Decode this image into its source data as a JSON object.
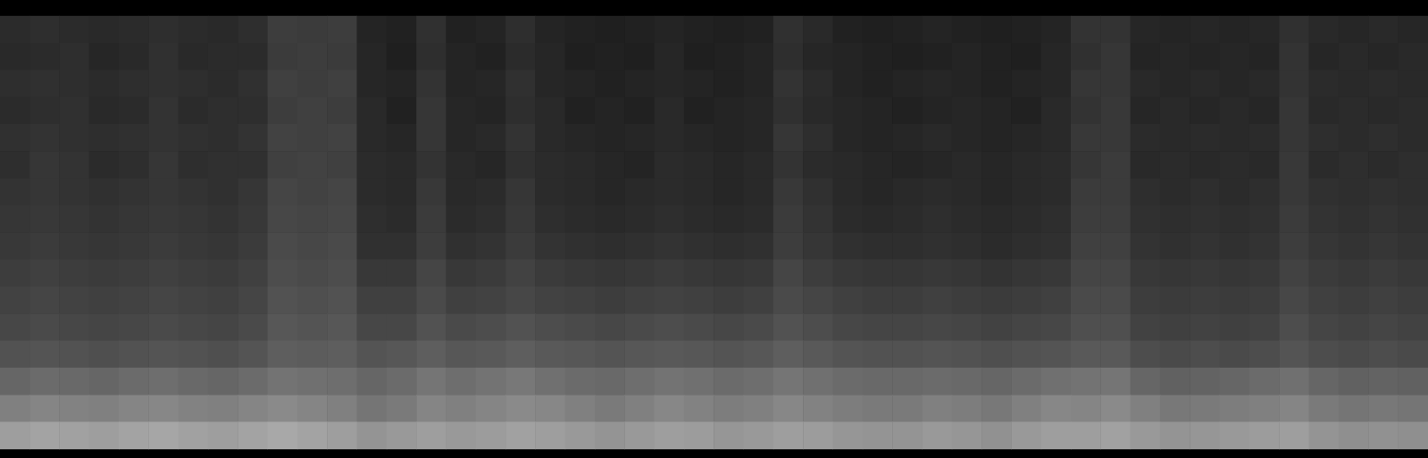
{
  "chart_data": {
    "type": "heatmap",
    "zlim": [
      0,
      100
    ],
    "color": "#ffffff",
    "tick_labels": false,
    "grid": false,
    "cells": [
      [
        17,
        18,
        17,
        16,
        17,
        18,
        17,
        16,
        18,
        24,
        23,
        24,
        14,
        13,
        19,
        13,
        14,
        18,
        14,
        13,
        12,
        13,
        14,
        13,
        12,
        13,
        19,
        16,
        13,
        12,
        13,
        14,
        13,
        12,
        13,
        14,
        20,
        20,
        15,
        14,
        15,
        14,
        15,
        19,
        16,
        15,
        16,
        15
      ],
      [
        16,
        17,
        18,
        15,
        16,
        19,
        16,
        17,
        17,
        23,
        24,
        23,
        15,
        12,
        18,
        14,
        13,
        17,
        15,
        12,
        13,
        12,
        15,
        12,
        13,
        14,
        18,
        15,
        14,
        13,
        12,
        13,
        14,
        13,
        12,
        15,
        19,
        21,
        14,
        15,
        14,
        15,
        14,
        20,
        15,
        16,
        15,
        16
      ],
      [
        18,
        19,
        18,
        17,
        18,
        19,
        18,
        17,
        19,
        25,
        24,
        25,
        15,
        14,
        20,
        14,
        15,
        19,
        15,
        14,
        13,
        14,
        15,
        14,
        13,
        14,
        20,
        17,
        14,
        13,
        14,
        15,
        14,
        13,
        14,
        15,
        21,
        21,
        16,
        15,
        16,
        15,
        16,
        20,
        17,
        16,
        17,
        16
      ],
      [
        17,
        18,
        19,
        16,
        17,
        20,
        17,
        18,
        18,
        24,
        25,
        24,
        16,
        13,
        21,
        15,
        14,
        18,
        16,
        13,
        14,
        13,
        16,
        13,
        14,
        15,
        19,
        16,
        15,
        14,
        13,
        14,
        15,
        14,
        13,
        16,
        20,
        22,
        15,
        16,
        15,
        16,
        15,
        21,
        16,
        17,
        16,
        17
      ],
      [
        19,
        20,
        19,
        18,
        19,
        20,
        19,
        18,
        20,
        26,
        25,
        26,
        16,
        15,
        21,
        15,
        16,
        20,
        16,
        15,
        14,
        15,
        16,
        15,
        14,
        15,
        21,
        18,
        15,
        14,
        15,
        16,
        15,
        14,
        15,
        16,
        22,
        22,
        17,
        16,
        17,
        16,
        17,
        21,
        18,
        17,
        18,
        17
      ],
      [
        18,
        21,
        20,
        17,
        18,
        21,
        18,
        19,
        19,
        25,
        26,
        25,
        17,
        16,
        20,
        16,
        15,
        19,
        17,
        16,
        15,
        14,
        17,
        16,
        15,
        16,
        20,
        17,
        16,
        15,
        14,
        15,
        16,
        15,
        16,
        17,
        21,
        23,
        16,
        17,
        16,
        17,
        16,
        22,
        17,
        18,
        17,
        18
      ],
      [
        20,
        21,
        20,
        19,
        20,
        21,
        20,
        19,
        21,
        27,
        26,
        27,
        17,
        16,
        22,
        16,
        17,
        21,
        17,
        16,
        15,
        16,
        17,
        16,
        15,
        16,
        22,
        19,
        16,
        15,
        16,
        17,
        16,
        15,
        16,
        17,
        23,
        23,
        18,
        17,
        18,
        17,
        18,
        22,
        19,
        18,
        19,
        18
      ],
      [
        21,
        22,
        21,
        20,
        21,
        22,
        21,
        20,
        22,
        28,
        27,
        28,
        18,
        17,
        23,
        17,
        18,
        22,
        18,
        17,
        16,
        17,
        18,
        17,
        16,
        17,
        23,
        20,
        17,
        16,
        17,
        18,
        17,
        16,
        17,
        18,
        24,
        24,
        19,
        18,
        19,
        18,
        19,
        23,
        20,
        19,
        20,
        19
      ],
      [
        22,
        23,
        22,
        21,
        22,
        23,
        22,
        21,
        23,
        29,
        28,
        29,
        19,
        19,
        24,
        19,
        20,
        23,
        20,
        19,
        18,
        19,
        20,
        19,
        18,
        19,
        24,
        21,
        19,
        18,
        18,
        19,
        18,
        17,
        18,
        19,
        25,
        25,
        20,
        19,
        20,
        19,
        20,
        24,
        21,
        20,
        21,
        20
      ],
      [
        24,
        25,
        24,
        23,
        24,
        25,
        24,
        23,
        25,
        30,
        29,
        30,
        22,
        22,
        27,
        22,
        23,
        26,
        23,
        22,
        21,
        22,
        23,
        22,
        21,
        22,
        27,
        24,
        22,
        21,
        21,
        22,
        21,
        20,
        21,
        22,
        27,
        27,
        22,
        21,
        22,
        21,
        22,
        26,
        23,
        22,
        23,
        22
      ],
      [
        26,
        27,
        26,
        25,
        26,
        27,
        26,
        25,
        27,
        32,
        31,
        32,
        25,
        25,
        29,
        25,
        26,
        28,
        26,
        25,
        24,
        25,
        26,
        25,
        24,
        25,
        29,
        27,
        25,
        24,
        24,
        25,
        24,
        23,
        24,
        25,
        29,
        29,
        24,
        23,
        24,
        23,
        24,
        28,
        25,
        24,
        25,
        24
      ],
      [
        28,
        29,
        28,
        27,
        28,
        29,
        28,
        27,
        29,
        34,
        33,
        34,
        28,
        28,
        32,
        29,
        30,
        32,
        30,
        29,
        28,
        29,
        30,
        29,
        28,
        29,
        32,
        30,
        28,
        27,
        27,
        28,
        27,
        26,
        27,
        28,
        31,
        31,
        26,
        25,
        26,
        25,
        26,
        30,
        27,
        26,
        27,
        26
      ],
      [
        32,
        33,
        32,
        31,
        32,
        33,
        32,
        31,
        33,
        37,
        36,
        37,
        33,
        34,
        37,
        34,
        35,
        37,
        35,
        34,
        33,
        34,
        35,
        34,
        33,
        34,
        37,
        35,
        33,
        32,
        32,
        33,
        32,
        31,
        32,
        33,
        35,
        35,
        30,
        29,
        30,
        29,
        30,
        33,
        30,
        29,
        30,
        29
      ],
      [
        40,
        42,
        41,
        40,
        42,
        43,
        41,
        40,
        42,
        45,
        44,
        43,
        40,
        42,
        46,
        43,
        45,
        47,
        44,
        42,
        41,
        43,
        45,
        44,
        42,
        43,
        46,
        44,
        42,
        41,
        41,
        42,
        41,
        40,
        42,
        44,
        45,
        46,
        40,
        38,
        39,
        40,
        42,
        44,
        40,
        38,
        39,
        38
      ],
      [
        50,
        52,
        51,
        50,
        52,
        53,
        51,
        50,
        52,
        54,
        52,
        50,
        46,
        48,
        52,
        50,
        52,
        54,
        53,
        50,
        48,
        50,
        53,
        51,
        49,
        50,
        53,
        51,
        49,
        48,
        48,
        50,
        49,
        47,
        50,
        53,
        52,
        54,
        50,
        47,
        48,
        49,
        50,
        52,
        48,
        46,
        47,
        46
      ],
      [
        62,
        64,
        63,
        62,
        64,
        65,
        63,
        62,
        64,
        66,
        64,
        62,
        58,
        60,
        62,
        60,
        61,
        63,
        62,
        60,
        58,
        60,
        62,
        61,
        59,
        60,
        62,
        61,
        59,
        58,
        58,
        60,
        59,
        57,
        60,
        62,
        62,
        63,
        60,
        58,
        59,
        60,
        61,
        62,
        58,
        56,
        57,
        56
      ]
    ]
  }
}
